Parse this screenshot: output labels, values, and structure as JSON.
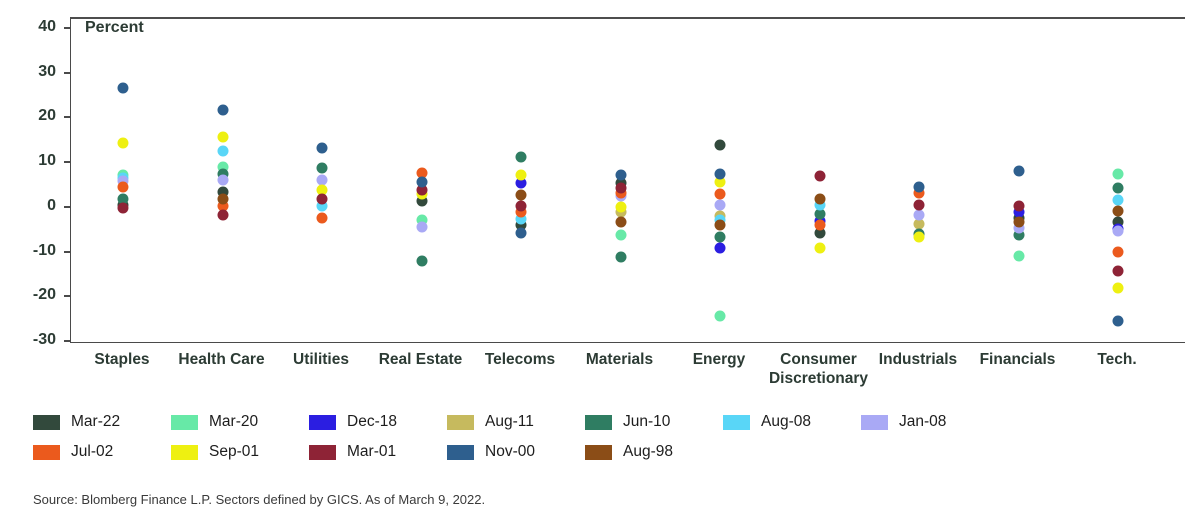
{
  "title": "Percent",
  "source": "Source: Blomberg Finance L.P. Sectors defined by GICS. As of March 9, 2022.",
  "chart_data": {
    "type": "scatter",
    "title": "",
    "ylabel": "Percent",
    "xlabel": "",
    "ylim": [
      -30,
      40
    ],
    "yticks": [
      40,
      30,
      20,
      10,
      0,
      -10,
      -20,
      -30
    ],
    "grid": false,
    "legend_position": "bottom",
    "categories": [
      "Staples",
      "Health Care",
      "Utilities",
      "Real Estate",
      "Telecoms",
      "Materials",
      "Energy",
      "Consumer Discretionary",
      "Industrials",
      "Financials",
      "Tech."
    ],
    "series": [
      {
        "name": "Mar-22",
        "color": "#32493c",
        "values": [
          0.4,
          3.3,
          null,
          1.3,
          -4.0,
          5.3,
          13.8,
          -5.8,
          null,
          -2.4,
          -3.3
        ]
      },
      {
        "name": "Mar-20",
        "color": "#67e9a7",
        "values": [
          7.1,
          8.9,
          null,
          -2.9,
          null,
          -6.2,
          -24.4,
          null,
          null,
          -11.1,
          7.3
        ]
      },
      {
        "name": "Dec-18",
        "color": "#2b1ee1",
        "values": [
          null,
          null,
          null,
          null,
          5.3,
          null,
          -9.3,
          -3.1,
          null,
          -1.1,
          -4.9
        ]
      },
      {
        "name": "Aug-11",
        "color": "#c6ba5e",
        "values": [
          null,
          null,
          null,
          null,
          null,
          -1.1,
          -2.0,
          null,
          -3.8,
          null,
          null
        ]
      },
      {
        "name": "Jun-10",
        "color": "#2f7d62",
        "values": [
          1.8,
          7.3,
          8.7,
          -12.2,
          11.1,
          -11.3,
          -6.7,
          -1.6,
          -6.0,
          -6.4,
          4.2
        ]
      },
      {
        "name": "Aug-08",
        "color": "#59d6f7",
        "values": [
          6.4,
          12.4,
          0.2,
          null,
          -2.7,
          null,
          -2.9,
          0.4,
          null,
          null,
          1.6
        ]
      },
      {
        "name": "Jan-08",
        "color": "#a9a9f5",
        "values": [
          5.7,
          6.0,
          6.0,
          -4.4,
          null,
          2.4,
          0.4,
          null,
          -1.8,
          -4.7,
          -5.3
        ]
      },
      {
        "name": "Jul-02",
        "color": "#eb5a1d",
        "values": [
          4.5,
          0.2,
          -2.4,
          7.6,
          -1.1,
          3.1,
          2.9,
          -4.0,
          3.1,
          null,
          -10.0
        ]
      },
      {
        "name": "Sep-01",
        "color": "#eef011",
        "values": [
          14.2,
          15.6,
          3.8,
          2.9,
          7.1,
          0.0,
          5.6,
          -9.3,
          -6.7,
          null,
          -18.2
        ]
      },
      {
        "name": "Mar-01",
        "color": "#8e2336",
        "values": [
          -0.3,
          -1.8,
          1.8,
          3.8,
          0.2,
          4.2,
          null,
          6.9,
          0.4,
          0.2,
          -14.4
        ]
      },
      {
        "name": "Nov-00",
        "color": "#2e5f8e",
        "values": [
          26.5,
          21.6,
          13.1,
          5.6,
          -5.8,
          7.1,
          7.3,
          null,
          4.4,
          8.0,
          -25.6
        ]
      },
      {
        "name": "Aug-98",
        "color": "#8b4d17",
        "values": [
          null,
          1.8,
          null,
          null,
          2.7,
          -3.3,
          -4.0,
          1.8,
          null,
          -3.3,
          -0.9
        ]
      }
    ],
    "legend_row_split": 7
  }
}
